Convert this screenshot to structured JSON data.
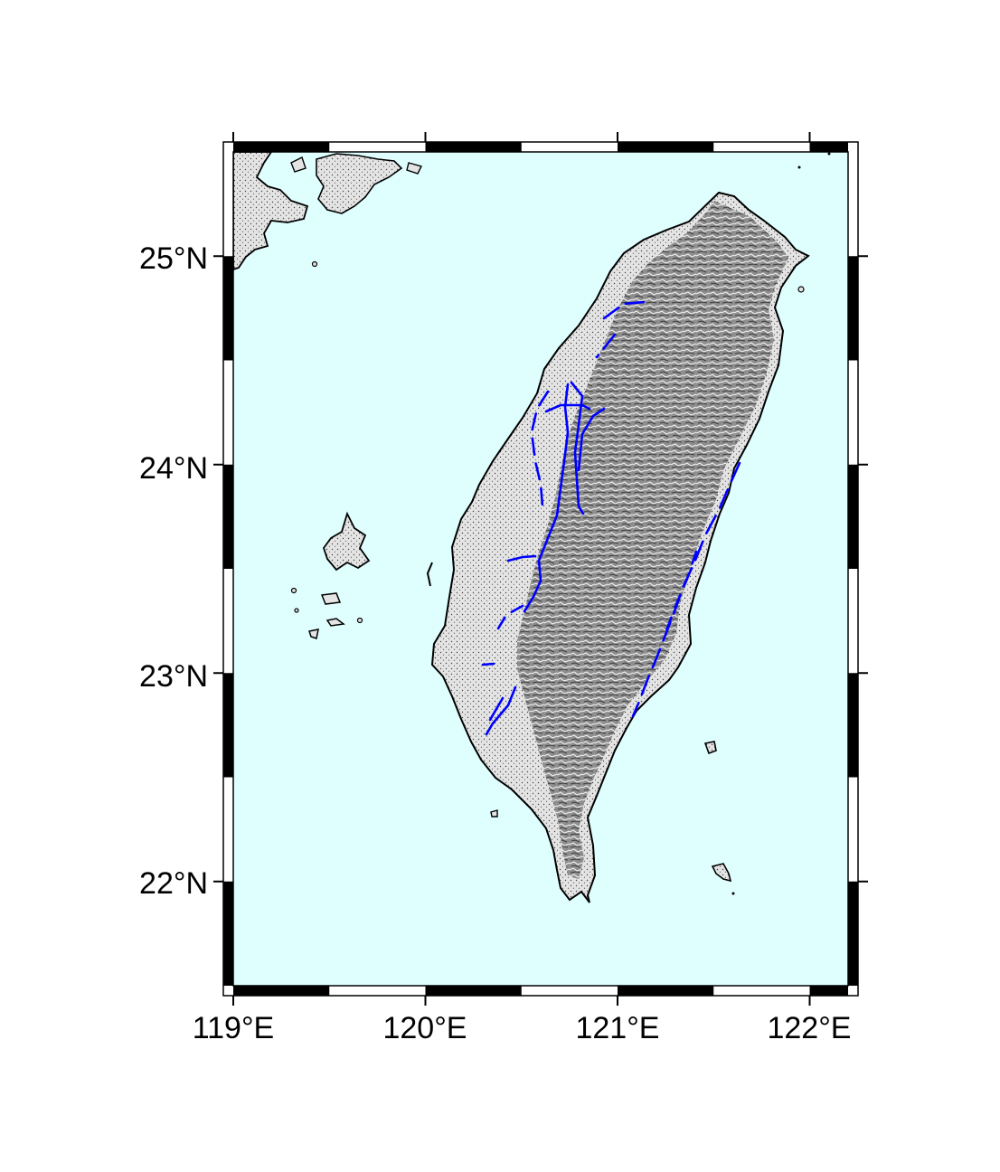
{
  "map": {
    "region": {
      "lon_min": 119.0,
      "lon_max": 122.2,
      "lat_min": 21.5,
      "lat_max": 25.5
    },
    "colors": {
      "ocean": "#dfffff",
      "land": "#9a9a9a",
      "relief_dark": "#555555",
      "relief_light": "#ececec",
      "coastline": "#000000",
      "faults": "#0000ff",
      "frame": "#000000"
    },
    "x_axis": {
      "ticks": [
        {
          "lon": 119,
          "label": "119°E"
        },
        {
          "lon": 120,
          "label": "120°E"
        },
        {
          "lon": 121,
          "label": "121°E"
        },
        {
          "lon": 122,
          "label": "122°E"
        }
      ]
    },
    "y_axis": {
      "ticks": [
        {
          "lat": 22,
          "label": "22°N"
        },
        {
          "lat": 23,
          "label": "23°N"
        },
        {
          "lat": 24,
          "label": "24°N"
        },
        {
          "lat": 25,
          "label": "25°N"
        }
      ]
    },
    "frame_style": "fancy"
  }
}
